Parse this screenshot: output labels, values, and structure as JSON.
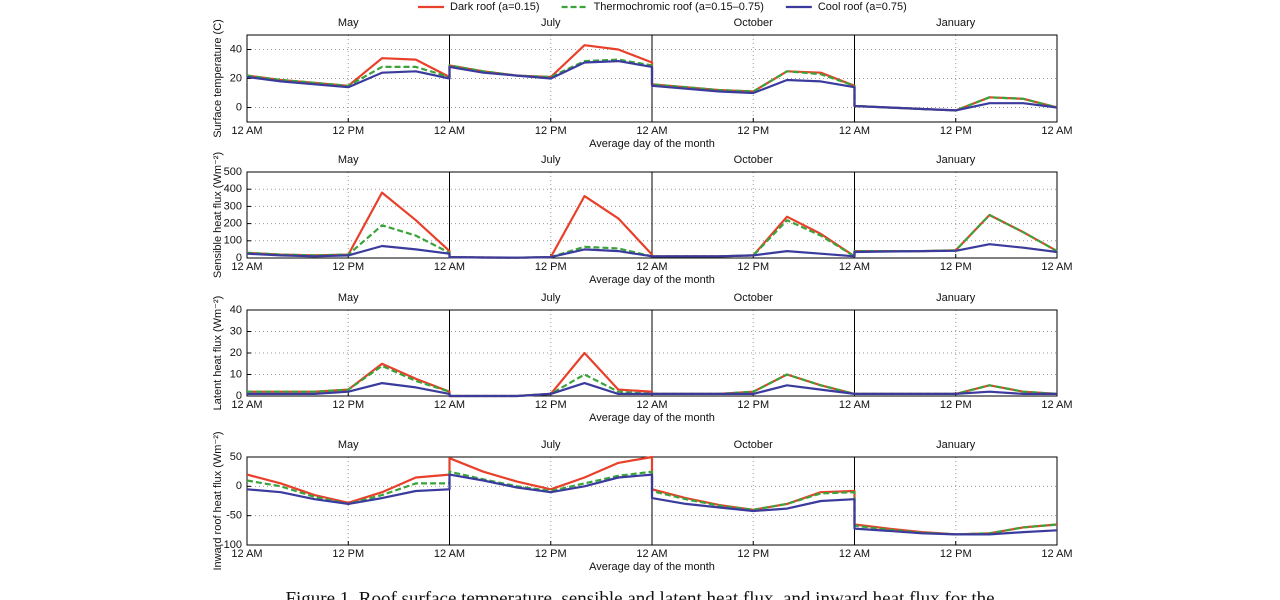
{
  "caption": "Figure 1. Roof surface temperature, sensible and latent heat flux, and inward heat flux for the",
  "chart_data": [
    {
      "type": "line",
      "ylabel": "Surface temperature (C)",
      "xlabel": "Average day of the month",
      "months": [
        "May",
        "July",
        "October",
        "January"
      ],
      "x": [
        0,
        4,
        8,
        12,
        16,
        20,
        24,
        24,
        28,
        32,
        36,
        40,
        44,
        48,
        48,
        52,
        56,
        60,
        64,
        68,
        72,
        72,
        76,
        80,
        84,
        88,
        92,
        96
      ],
      "xlim": [
        0,
        96
      ],
      "xticks": [
        {
          "value": 0,
          "label": "12 AM"
        },
        {
          "value": 12,
          "label": "12 PM"
        },
        {
          "value": 24,
          "label": "12 AM"
        },
        {
          "value": 36,
          "label": "12 PM"
        },
        {
          "value": 48,
          "label": "12 AM"
        },
        {
          "value": 60,
          "label": "12 PM"
        },
        {
          "value": 72,
          "label": "12 AM"
        },
        {
          "value": 84,
          "label": "12 PM"
        },
        {
          "value": 96,
          "label": "12 AM"
        }
      ],
      "ylim": [
        -10,
        50
      ],
      "yticks": [
        0,
        20,
        40
      ],
      "grid": true,
      "series": [
        {
          "name": "Dark roof (a=0.15)",
          "color": "#e8402a",
          "dash": false,
          "values": [
            22,
            19,
            17,
            15,
            34,
            33,
            21,
            29,
            25,
            22,
            21,
            43,
            40,
            31,
            16,
            14,
            12,
            11,
            25,
            24,
            15,
            1,
            0,
            -1,
            -2,
            7,
            6,
            0
          ]
        },
        {
          "name": "Thermochromic roof (a=0.15–0.75)",
          "color": "#3aa33a",
          "dash": true,
          "values": [
            22,
            19,
            17,
            15,
            28,
            28,
            21,
            29,
            25,
            22,
            21,
            32,
            33,
            29,
            16,
            14,
            12,
            11,
            25,
            23,
            15,
            1,
            0,
            -1,
            -2,
            7,
            6,
            0
          ]
        },
        {
          "name": "Cool roof (a=0.75)",
          "color": "#3b3b9e",
          "dash": false,
          "values": [
            21,
            18,
            16,
            14,
            24,
            25,
            20,
            28,
            24,
            22,
            20,
            31,
            32,
            28,
            15,
            13,
            11,
            10,
            19,
            18,
            14,
            1,
            0,
            -1,
            -2,
            3,
            3,
            0
          ]
        }
      ]
    },
    {
      "type": "line",
      "ylabel": "Sensible heat flux (Wm⁻²)",
      "xlabel": "Average day of the month",
      "months": [
        "May",
        "July",
        "October",
        "January"
      ],
      "x": [
        0,
        4,
        8,
        12,
        16,
        20,
        24,
        24,
        28,
        32,
        36,
        40,
        44,
        48,
        48,
        52,
        56,
        60,
        64,
        68,
        72,
        72,
        76,
        80,
        84,
        88,
        92,
        96
      ],
      "xlim": [
        0,
        96
      ],
      "xticks": [
        {
          "value": 0,
          "label": "12 AM"
        },
        {
          "value": 12,
          "label": "12 PM"
        },
        {
          "value": 24,
          "label": "12 AM"
        },
        {
          "value": 36,
          "label": "12 PM"
        },
        {
          "value": 48,
          "label": "12 AM"
        },
        {
          "value": 60,
          "label": "12 PM"
        },
        {
          "value": 72,
          "label": "12 AM"
        },
        {
          "value": 84,
          "label": "12 PM"
        },
        {
          "value": 96,
          "label": "12 AM"
        }
      ],
      "ylim": [
        0,
        500
      ],
      "yticks": [
        0,
        100,
        200,
        300,
        400,
        500
      ],
      "grid": true,
      "series": [
        {
          "color": "#e8402a",
          "dash": false,
          "values": [
            30,
            20,
            15,
            20,
            380,
            220,
            40,
            5,
            3,
            2,
            5,
            360,
            230,
            20,
            10,
            10,
            10,
            15,
            240,
            140,
            10,
            40,
            40,
            40,
            45,
            250,
            150,
            40
          ]
        },
        {
          "color": "#3aa33a",
          "dash": true,
          "values": [
            30,
            20,
            15,
            20,
            190,
            130,
            30,
            5,
            3,
            2,
            5,
            65,
            55,
            10,
            10,
            10,
            10,
            15,
            220,
            130,
            10,
            40,
            40,
            40,
            45,
            250,
            150,
            40
          ]
        },
        {
          "color": "#3b3b9e",
          "dash": false,
          "values": [
            25,
            15,
            10,
            15,
            70,
            50,
            25,
            5,
            3,
            2,
            5,
            50,
            40,
            10,
            10,
            10,
            10,
            15,
            40,
            25,
            10,
            35,
            38,
            40,
            42,
            80,
            60,
            35
          ]
        }
      ]
    },
    {
      "type": "line",
      "ylabel": "Latent heat flux (Wm⁻²)",
      "xlabel": "Average day of the month",
      "months": [
        "May",
        "July",
        "October",
        "January"
      ],
      "x": [
        0,
        4,
        8,
        12,
        16,
        20,
        24,
        24,
        28,
        32,
        36,
        40,
        44,
        48,
        48,
        52,
        56,
        60,
        64,
        68,
        72,
        72,
        76,
        80,
        84,
        88,
        92,
        96
      ],
      "xlim": [
        0,
        96
      ],
      "xticks": [
        {
          "value": 0,
          "label": "12 AM"
        },
        {
          "value": 12,
          "label": "12 PM"
        },
        {
          "value": 24,
          "label": "12 AM"
        },
        {
          "value": 36,
          "label": "12 PM"
        },
        {
          "value": 48,
          "label": "12 AM"
        },
        {
          "value": 60,
          "label": "12 PM"
        },
        {
          "value": 72,
          "label": "12 AM"
        },
        {
          "value": 84,
          "label": "12 PM"
        },
        {
          "value": 96,
          "label": "12 AM"
        }
      ],
      "ylim": [
        0,
        40
      ],
      "yticks": [
        0,
        10,
        20,
        30,
        40
      ],
      "grid": true,
      "series": [
        {
          "color": "#e8402a",
          "dash": false,
          "values": [
            2,
            2,
            2,
            3,
            15,
            8,
            2,
            0,
            0,
            0,
            1,
            20,
            3,
            2,
            1,
            1,
            1,
            2,
            10,
            5,
            1,
            1,
            1,
            1,
            1,
            5,
            2,
            1
          ]
        },
        {
          "color": "#3aa33a",
          "dash": true,
          "values": [
            2,
            2,
            2,
            3,
            14,
            7,
            2,
            0,
            0,
            0,
            1,
            10,
            2,
            1,
            1,
            1,
            1,
            2,
            10,
            5,
            1,
            1,
            1,
            1,
            1,
            5,
            2,
            1
          ]
        },
        {
          "color": "#3b3b9e",
          "dash": false,
          "values": [
            1,
            1,
            1,
            2,
            6,
            4,
            1,
            0,
            0,
            0,
            1,
            6,
            1,
            1,
            1,
            1,
            1,
            1,
            5,
            3,
            1,
            1,
            1,
            1,
            1,
            2,
            1,
            1
          ]
        }
      ]
    },
    {
      "type": "line",
      "ylabel": "Inward roof heat flux (Wm⁻²)",
      "xlabel": "Average day of the month",
      "months": [
        "May",
        "July",
        "October",
        "January"
      ],
      "x": [
        0,
        4,
        8,
        12,
        16,
        20,
        24,
        24,
        28,
        32,
        36,
        40,
        44,
        48,
        48,
        52,
        56,
        60,
        64,
        68,
        72,
        72,
        76,
        80,
        84,
        88,
        92,
        96
      ],
      "xlim": [
        0,
        96
      ],
      "xticks": [
        {
          "value": 0,
          "label": "12 AM"
        },
        {
          "value": 12,
          "label": "12 PM"
        },
        {
          "value": 24,
          "label": "12 AM"
        },
        {
          "value": 36,
          "label": "12 PM"
        },
        {
          "value": 48,
          "label": "12 AM"
        },
        {
          "value": 60,
          "label": "12 PM"
        },
        {
          "value": 72,
          "label": "12 AM"
        },
        {
          "value": 84,
          "label": "12 PM"
        },
        {
          "value": 96,
          "label": "12 AM"
        }
      ],
      "ylim": [
        -100,
        50
      ],
      "yticks": [
        -100,
        -50,
        0,
        50
      ],
      "grid": true,
      "series": [
        {
          "color": "#e8402a",
          "dash": false,
          "values": [
            20,
            5,
            -15,
            -28,
            -10,
            15,
            20,
            48,
            25,
            8,
            -5,
            15,
            40,
            50,
            -5,
            -20,
            -32,
            -40,
            -30,
            -10,
            -8,
            -65,
            -72,
            -78,
            -82,
            -80,
            -70,
            -65
          ]
        },
        {
          "color": "#3aa33a",
          "dash": true,
          "values": [
            10,
            0,
            -18,
            -30,
            -15,
            5,
            5,
            25,
            12,
            0,
            -8,
            5,
            18,
            25,
            -8,
            -22,
            -33,
            -40,
            -30,
            -12,
            -10,
            -67,
            -74,
            -79,
            -82,
            -80,
            -70,
            -65
          ]
        },
        {
          "color": "#3b3b9e",
          "dash": false,
          "values": [
            -5,
            -10,
            -22,
            -30,
            -20,
            -8,
            -5,
            20,
            10,
            -2,
            -10,
            0,
            15,
            20,
            -20,
            -30,
            -36,
            -42,
            -38,
            -25,
            -22,
            -72,
            -76,
            -80,
            -82,
            -82,
            -78,
            -75
          ]
        }
      ]
    }
  ]
}
